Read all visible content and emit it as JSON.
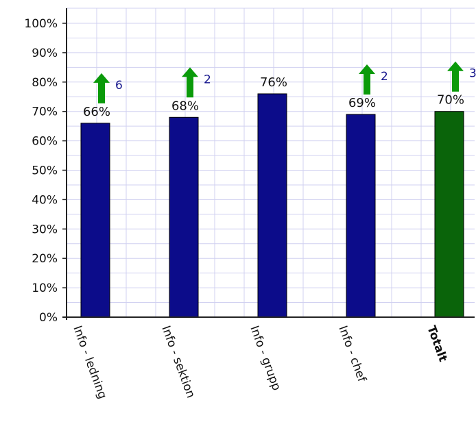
{
  "chart_data": {
    "type": "bar",
    "categories": [
      "Info - ledning",
      "Info - sektion",
      "Info - grupp",
      "Info - chef",
      "Totalt"
    ],
    "values": [
      66,
      68,
      76,
      69,
      70
    ],
    "value_labels": [
      "66%",
      "68%",
      "76%",
      "69%",
      "70%"
    ],
    "change_indicators": [
      {
        "category": "Info - ledning",
        "direction": "up",
        "value": "6"
      },
      {
        "category": "Info - sektion",
        "direction": "up",
        "value": "2"
      },
      {
        "category": "Info - grupp",
        "direction": "none",
        "value": ""
      },
      {
        "category": "Info - chef",
        "direction": "up",
        "value": "2"
      },
      {
        "category": "Totalt",
        "direction": "up",
        "value": "3"
      }
    ],
    "ylim": [
      0,
      100
    ],
    "yticks": [
      0,
      10,
      20,
      30,
      40,
      50,
      60,
      70,
      80,
      90,
      100
    ],
    "ytick_labels": [
      "0%",
      "10%",
      "20%",
      "30%",
      "40%",
      "50%",
      "60%",
      "70%",
      "80%",
      "90%",
      "100%"
    ],
    "grid": true,
    "colors": {
      "bar": "#0c0c8a",
      "total_bar": "#0a640a",
      "arrow": "#0a9a0a",
      "arrow_number": "#14148c",
      "grid": "#d0d0f0",
      "axis": "#222222"
    }
  }
}
